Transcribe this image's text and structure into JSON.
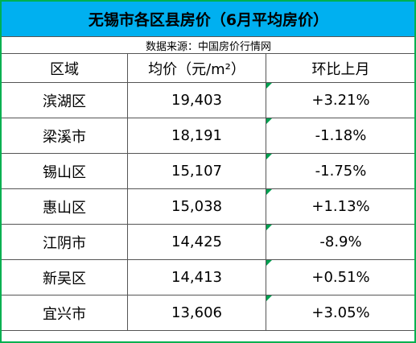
{
  "table": {
    "title": "无锡市各区县房价（6月平均房价）",
    "source": "数据来源：中国房价行情网",
    "header": [
      "区域",
      "均价（元/m²）",
      "环比上月"
    ],
    "rows": [
      [
        "滨湖区",
        "19,403",
        "+3.21%"
      ],
      [
        "梁溪市",
        "18,191",
        "-1.18%"
      ],
      [
        "锡山区",
        "15,107",
        "-1.75%"
      ],
      [
        "惠山区",
        "15,038",
        "+1.13%"
      ],
      [
        "江阴市",
        "14,425",
        "-8.9%"
      ],
      [
        "新吴区",
        "14,413",
        "+0.51%"
      ],
      [
        "宜兴市",
        "13,606",
        "+3.05%"
      ]
    ]
  }
}
